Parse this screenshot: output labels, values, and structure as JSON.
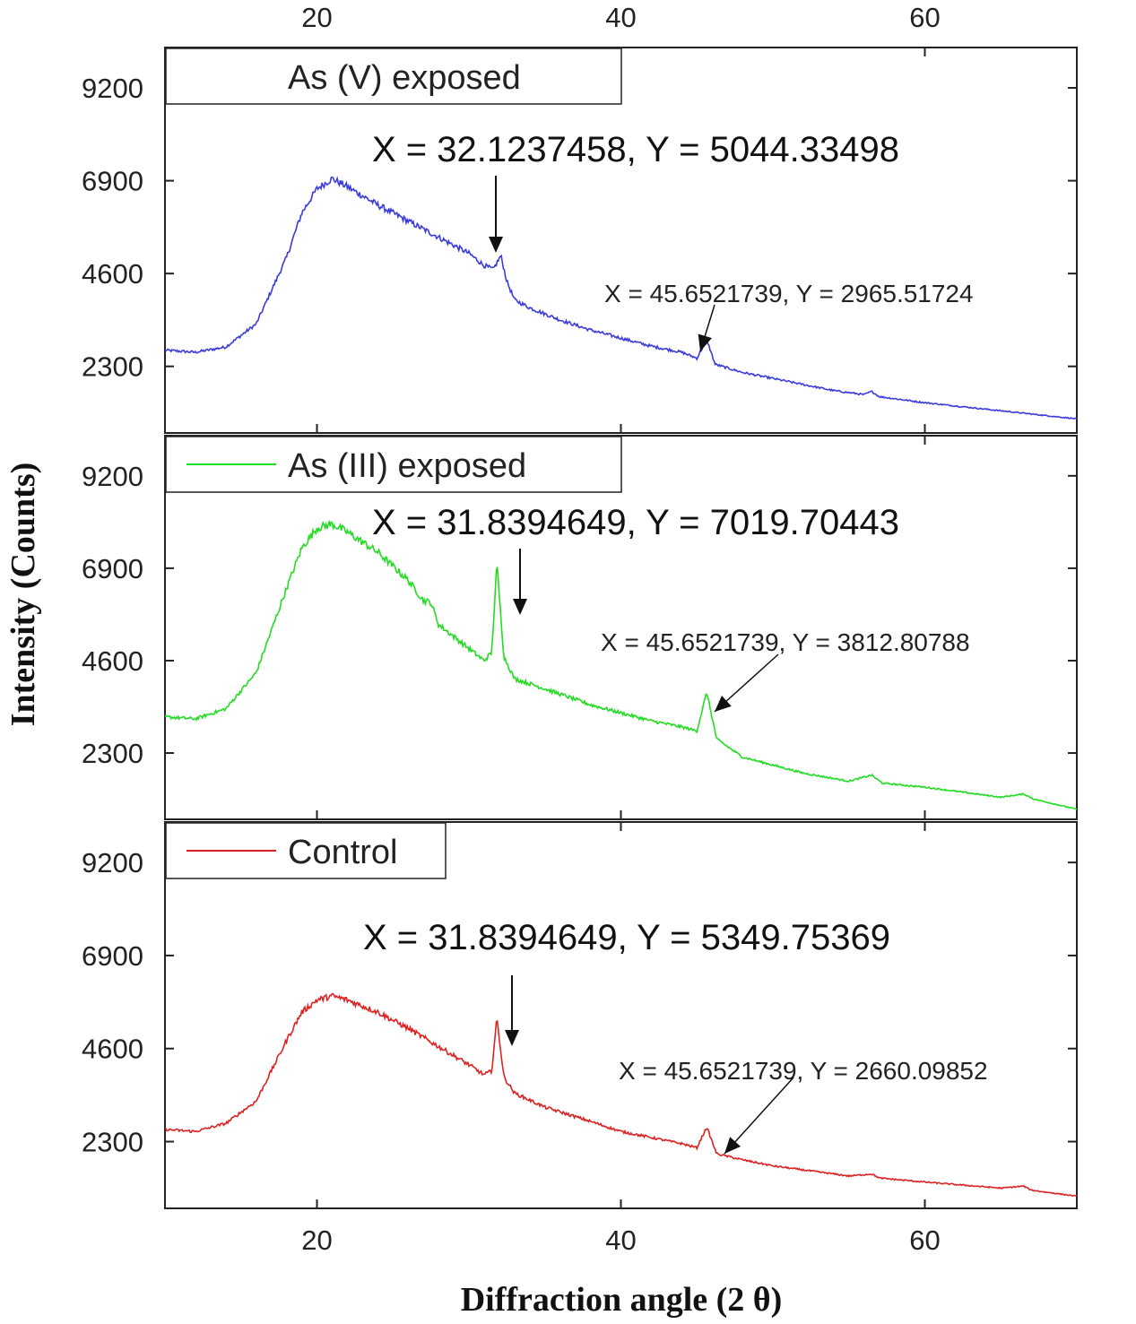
{
  "chart_data": {
    "type": "line",
    "xlabel": "Diffraction angle (2 θ)",
    "ylabel": "Intensity (Counts)",
    "xlim": [
      10,
      70
    ],
    "ylim": [
      650,
      10200
    ],
    "x_ticks": [
      20,
      40,
      60
    ],
    "x_tick_labels": [
      "20",
      "40",
      "60"
    ],
    "y_ticks": [
      2300,
      4600,
      6900,
      9200
    ],
    "y_tick_labels": [
      "2300",
      "4600",
      "6900",
      "9200"
    ],
    "legend_position": "top-left of each panel",
    "panels": [
      {
        "name": "As (V) exposed",
        "color": "#3b3bdc",
        "show_legend_line": false,
        "points": [
          [
            10,
            2700
          ],
          [
            12,
            2650
          ],
          [
            14,
            2780
          ],
          [
            16,
            3350
          ],
          [
            18,
            5000
          ],
          [
            19,
            6100
          ],
          [
            20,
            6700
          ],
          [
            21,
            6950
          ],
          [
            22,
            6750
          ],
          [
            24,
            6300
          ],
          [
            26,
            5900
          ],
          [
            28,
            5500
          ],
          [
            30,
            5100
          ],
          [
            31,
            4800
          ],
          [
            31.6,
            4700
          ],
          [
            32.1,
            5044
          ],
          [
            32.5,
            4400
          ],
          [
            33,
            3950
          ],
          [
            34,
            3750
          ],
          [
            36,
            3450
          ],
          [
            38,
            3200
          ],
          [
            40,
            3000
          ],
          [
            42,
            2800
          ],
          [
            44,
            2650
          ],
          [
            45,
            2500
          ],
          [
            45.65,
            2966
          ],
          [
            46.2,
            2350
          ],
          [
            48,
            2150
          ],
          [
            50,
            2000
          ],
          [
            52,
            1850
          ],
          [
            54,
            1700
          ],
          [
            56,
            1600
          ],
          [
            56.5,
            1680
          ],
          [
            57,
            1550
          ],
          [
            60,
            1400
          ],
          [
            65,
            1200
          ],
          [
            70,
            1000
          ]
        ],
        "peaks": [
          {
            "x": 32.1237458,
            "y": 5044.33498,
            "label": "X = 32.1237458, Y = 5044.33498",
            "size": "large"
          },
          {
            "x": 45.6521739,
            "y": 2965.51724,
            "label": "X = 45.6521739, Y = 2965.51724",
            "size": "small"
          }
        ]
      },
      {
        "name": "As (III) exposed",
        "color": "#22dd22",
        "show_legend_line": true,
        "points": [
          [
            10,
            3200
          ],
          [
            12,
            3150
          ],
          [
            14,
            3400
          ],
          [
            16,
            4300
          ],
          [
            18,
            6400
          ],
          [
            19,
            7400
          ],
          [
            20,
            7900
          ],
          [
            21,
            8000
          ],
          [
            22,
            7800
          ],
          [
            24,
            7300
          ],
          [
            26,
            6600
          ],
          [
            27,
            6100
          ],
          [
            27.5,
            6050
          ],
          [
            28,
            5500
          ],
          [
            30,
            4900
          ],
          [
            31,
            4600
          ],
          [
            31.5,
            4800
          ],
          [
            31.84,
            7020
          ],
          [
            32.3,
            4700
          ],
          [
            33,
            4150
          ],
          [
            35,
            3900
          ],
          [
            38,
            3500
          ],
          [
            40,
            3300
          ],
          [
            42,
            3100
          ],
          [
            44,
            2950
          ],
          [
            45,
            2850
          ],
          [
            45.65,
            3813
          ],
          [
            46.3,
            2650
          ],
          [
            48,
            2200
          ],
          [
            50,
            2000
          ],
          [
            52,
            1800
          ],
          [
            55,
            1600
          ],
          [
            56.5,
            1750
          ],
          [
            57.2,
            1550
          ],
          [
            60,
            1450
          ],
          [
            65,
            1200
          ],
          [
            66.5,
            1280
          ],
          [
            67.2,
            1150
          ],
          [
            70,
            900
          ]
        ],
        "peaks": [
          {
            "x": 31.8394649,
            "y": 7019.70443,
            "label": "X = 31.8394649, Y = 7019.70443",
            "size": "large"
          },
          {
            "x": 45.6521739,
            "y": 3812.80788,
            "label": "X = 45.6521739, Y = 3812.80788",
            "size": "small"
          }
        ]
      },
      {
        "name": "Control",
        "color": "#dd2222",
        "show_legend_line": true,
        "points": [
          [
            10,
            2600
          ],
          [
            12,
            2550
          ],
          [
            14,
            2750
          ],
          [
            16,
            3300
          ],
          [
            18,
            4800
          ],
          [
            19,
            5500
          ],
          [
            20,
            5800
          ],
          [
            21,
            5900
          ],
          [
            22,
            5800
          ],
          [
            24,
            5500
          ],
          [
            26,
            5100
          ],
          [
            28,
            4650
          ],
          [
            30,
            4200
          ],
          [
            31,
            3950
          ],
          [
            31.5,
            4050
          ],
          [
            31.84,
            5350
          ],
          [
            32.3,
            3900
          ],
          [
            33,
            3500
          ],
          [
            35,
            3150
          ],
          [
            38,
            2800
          ],
          [
            40,
            2550
          ],
          [
            42,
            2400
          ],
          [
            44,
            2250
          ],
          [
            45,
            2150
          ],
          [
            45.65,
            2660
          ],
          [
            46.3,
            2000
          ],
          [
            48,
            1850
          ],
          [
            50,
            1700
          ],
          [
            52,
            1600
          ],
          [
            55,
            1450
          ],
          [
            56.5,
            1500
          ],
          [
            57,
            1400
          ],
          [
            60,
            1300
          ],
          [
            65,
            1150
          ],
          [
            66.5,
            1200
          ],
          [
            67,
            1100
          ],
          [
            70,
            950
          ]
        ],
        "peaks": [
          {
            "x": 31.8394649,
            "y": 5349.75369,
            "label": "X = 31.8394649, Y = 5349.75369",
            "size": "large"
          },
          {
            "x": 45.6521739,
            "y": 2660.09852,
            "label": "X = 45.6521739, Y = 2660.09852",
            "size": "small"
          }
        ]
      }
    ]
  }
}
